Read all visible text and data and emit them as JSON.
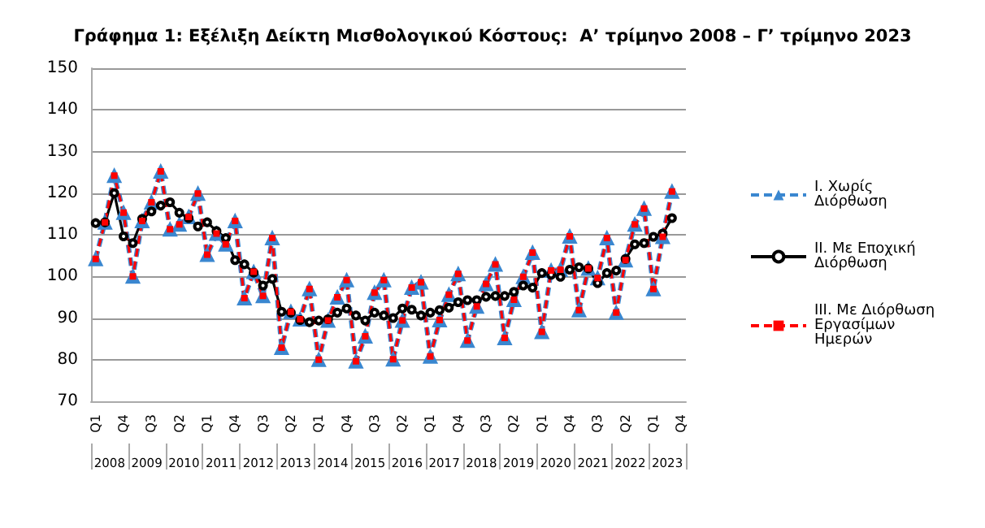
{
  "chart_data": {
    "type": "line",
    "title": "Γράφημα 1: Εξέλιξη Δείκτη Μισθολογικού Κόστους:  Α’ τρίμηνο 2008 – Γ’ τρίμηνο 2023",
    "categories": [
      "Q1",
      null,
      null,
      "Q4",
      null,
      null,
      "Q3",
      null,
      null,
      "Q2",
      null,
      null,
      "Q1",
      null,
      null,
      "Q4",
      null,
      null,
      "Q3",
      null,
      null,
      "Q2",
      null,
      null,
      "Q1",
      null,
      null,
      "Q4",
      null,
      null,
      "Q3",
      null,
      null,
      "Q2",
      null,
      null,
      "Q1",
      null,
      null,
      "Q4",
      null,
      null,
      "Q3",
      null,
      null,
      "Q2",
      null,
      null,
      "Q1",
      null,
      null,
      "Q4",
      null,
      null,
      "Q3",
      null,
      null,
      "Q2",
      null,
      null,
      "Q1",
      null,
      null,
      "Q4"
    ],
    "annotations": [
      "2008",
      "2009",
      "2010",
      "2011",
      "2012",
      "2013",
      "2014",
      "2015",
      "2016",
      "2017",
      "2018",
      "2019",
      "2020",
      "2021",
      "2022",
      "2023"
    ],
    "series": [
      {
        "name": "I. Χωρίς Διόρθωση",
        "color": "#3a87d0",
        "marker": "triangle",
        "line_style": "dashed",
        "values": [
          104.2,
          113,
          124.2,
          115.3,
          100,
          113.3,
          117.8,
          125.2,
          111.3,
          112.5,
          114.3,
          119.9,
          105.2,
          110.3,
          107.7,
          113.3,
          94.8,
          101.1,
          95.3,
          109.2,
          82.9,
          91.5,
          89.7,
          97,
          80,
          89.4,
          95,
          99.1,
          79.6,
          85.6,
          96.1,
          99.1,
          80.1,
          89.4,
          97.3,
          98.6,
          80.8,
          89.5,
          95.6,
          100.6,
          84.6,
          92.8,
          98.2,
          102.9,
          85.2,
          94.4,
          99.9,
          105.7,
          86.7,
          101.4,
          101.6,
          109.6,
          91.9,
          101.9,
          99.6,
          109.2,
          91.3,
          103.9,
          112.5,
          116.3,
          97,
          109.5,
          120.4,
          null
        ]
      },
      {
        "name": "II. Με Εποχική Διόρθωση",
        "color": "#000000",
        "marker": "circle",
        "line_style": "solid",
        "values": [
          112.8,
          113,
          120,
          109.6,
          108,
          113.8,
          115.6,
          117,
          117.8,
          115.3,
          114,
          112,
          113,
          110.9,
          109.2,
          103.9,
          102.9,
          100.9,
          97.8,
          99.4,
          91.5,
          91.3,
          89.5,
          89,
          89.4,
          89.7,
          91.3,
          92.3,
          90.6,
          89.4,
          91.3,
          90.6,
          90,
          92.3,
          92,
          90.6,
          91.3,
          91.9,
          92.5,
          93.8,
          94.3,
          94.3,
          95.1,
          95.3,
          95.3,
          96.3,
          97.8,
          97.3,
          100.8,
          100.4,
          99.9,
          101.6,
          102.2,
          101.9,
          98.4,
          100.8,
          101.4,
          104.2,
          107.7,
          108,
          109.5,
          110.3,
          114,
          null
        ]
      },
      {
        "name": "III. Με Διόρθωση Εργασίμων Ημερών",
        "color": "#ff0000",
        "marker": "square",
        "line_style": "dashed",
        "values": [
          104.2,
          113,
          124.2,
          115.3,
          100,
          113.3,
          117.8,
          125.2,
          111.3,
          112.5,
          114.3,
          119.9,
          105.2,
          110.3,
          107.7,
          113.3,
          94.8,
          101.1,
          95.3,
          109.2,
          82.9,
          91.5,
          89.7,
          97,
          80,
          89.4,
          95,
          99.1,
          79.6,
          85.6,
          96.1,
          99.1,
          80.1,
          89.4,
          97.3,
          98.6,
          80.8,
          89.5,
          95.6,
          100.6,
          84.6,
          92.8,
          98.2,
          102.9,
          85.2,
          94.4,
          99.9,
          105.7,
          86.7,
          101.4,
          101.6,
          109.6,
          91.9,
          101.9,
          99.6,
          109.2,
          91.3,
          103.9,
          112.5,
          116.3,
          97,
          109.5,
          120.4,
          null
        ]
      }
    ],
    "ylim": [
      70,
      150
    ],
    "yticks": [
      70,
      80,
      90,
      100,
      110,
      120,
      130,
      140,
      150
    ],
    "grid": "y",
    "legend": "right"
  }
}
